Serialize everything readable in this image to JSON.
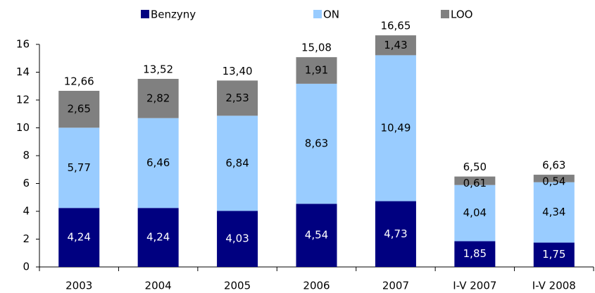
{
  "chart_data": {
    "type": "stacked_bar",
    "categories": [
      "2003",
      "2004",
      "2005",
      "2006",
      "2007",
      "I-V 2007",
      "I-V 2008"
    ],
    "series": [
      {
        "name": "Benzyny",
        "color": "#000080",
        "values": [
          4.24,
          4.24,
          4.03,
          4.54,
          4.73,
          1.85,
          1.75
        ],
        "value_labels": [
          "4,24",
          "4,24",
          "4,03",
          "4,54",
          "4,73",
          "1,85",
          "1,75"
        ]
      },
      {
        "name": "ON",
        "color": "#99ccff",
        "values": [
          5.77,
          6.46,
          6.84,
          8.63,
          10.49,
          4.04,
          4.34
        ],
        "value_labels": [
          "5,77",
          "6,46",
          "6,84",
          "8,63",
          "10,49",
          "4,04",
          "4,34"
        ]
      },
      {
        "name": "LOO",
        "color": "#808080",
        "values": [
          2.65,
          2.82,
          2.53,
          1.91,
          1.43,
          0.61,
          0.54
        ],
        "value_labels": [
          "2,65",
          "2,82",
          "2,53",
          "1,91",
          "1,43",
          "0,61",
          "0,54"
        ]
      }
    ],
    "totals": [
      12.66,
      13.52,
      13.4,
      15.08,
      16.65,
      6.5,
      6.63
    ],
    "total_labels": [
      "12,66",
      "13,52",
      "13,40",
      "15,08",
      "16,65",
      "6,50",
      "6,63"
    ],
    "ylim": [
      0,
      16
    ],
    "yticks": [
      0,
      2,
      4,
      6,
      8,
      10,
      12,
      14,
      16
    ],
    "grid": false,
    "legend": "top"
  }
}
